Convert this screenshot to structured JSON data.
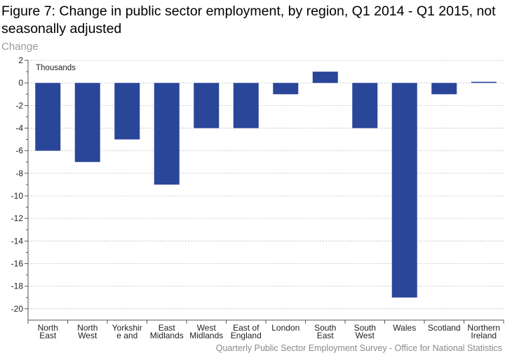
{
  "title": "Figure 7: Change in public sector employment, by region, Q1 2014 - Q1 2015, not seasonally adjusted",
  "subtitle": "Change",
  "source": "Quarterly Public Sector Employment Survey - Office for National Statistics",
  "colors": {
    "bar": "#2a4699",
    "grid": "#c8c8c8",
    "axis": "#555555"
  },
  "chart_data": {
    "type": "bar",
    "title": "Figure 7: Change in public sector employment, by region, Q1 2014 - Q1 2015, not seasonally adjusted",
    "ylabel": "Thousands",
    "ylim": [
      -21,
      2
    ],
    "yticks": [
      2,
      0,
      -2,
      -4,
      -6,
      -8,
      -10,
      -12,
      -14,
      -16,
      -18,
      -20
    ],
    "grid": true,
    "categories": [
      "North East",
      "North West",
      "Yorkshire and",
      "East Midlands",
      "West Midlands",
      "East of England",
      "London",
      "South East",
      "South West",
      "Wales",
      "Scotland",
      "Northern Ireland"
    ],
    "category_labels": [
      [
        "North",
        "East"
      ],
      [
        "North",
        "West"
      ],
      [
        "Yorkshir",
        "e and"
      ],
      [
        "East",
        "Midlands"
      ],
      [
        "West",
        "Midlands"
      ],
      [
        "East of",
        "England"
      ],
      [
        "London"
      ],
      [
        "South",
        "East"
      ],
      [
        "South",
        "West"
      ],
      [
        "Wales"
      ],
      [
        "Scotland"
      ],
      [
        "Northern",
        "Ireland"
      ]
    ],
    "values": [
      -6,
      -7,
      -5,
      -9,
      -4,
      -4,
      -1,
      1,
      -4,
      -19,
      -1,
      0.1
    ]
  }
}
